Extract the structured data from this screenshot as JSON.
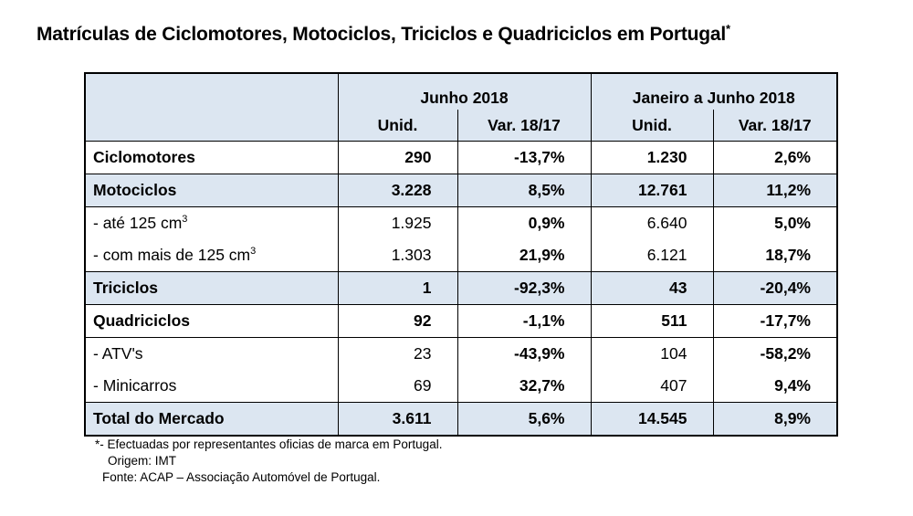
{
  "title": "Matrículas de Ciclomotores, Motociclos, Triciclos e Quadriciclos em Portugal",
  "title_mark": "*",
  "headers": {
    "group1": "Junho 2018",
    "group2": "Janeiro a Junho 2018",
    "unid1": "Unid.",
    "var1": "Var. 18/17",
    "unid2": "Unid.",
    "var2": "Var. 18/17"
  },
  "rows": [
    {
      "label": "Ciclomotores",
      "u1": "290",
      "v1": "-13,7%",
      "u2": "1.230",
      "v2": "2,6%"
    },
    {
      "label": "Motociclos",
      "u1": "3.228",
      "v1": "8,5%",
      "u2": "12.761",
      "v2": "11,2%"
    },
    {
      "label": "- até 125 cm",
      "sup": "3",
      "u1": "1.925",
      "v1": "0,9%",
      "u2": "6.640",
      "v2": "5,0%"
    },
    {
      "label": "- com mais de 125 cm",
      "sup": "3",
      "u1": "1.303",
      "v1": "21,9%",
      "u2": "6.121",
      "v2": "18,7%"
    },
    {
      "label": "Triciclos",
      "u1": "1",
      "v1": "-92,3%",
      "u2": "43",
      "v2": "-20,4%"
    },
    {
      "label": "Quadriciclos",
      "u1": "92",
      "v1": "-1,1%",
      "u2": "511",
      "v2": "-17,7%"
    },
    {
      "label": "- ATV's",
      "u1": "23",
      "v1": "-43,9%",
      "u2": "104",
      "v2": "-58,2%"
    },
    {
      "label": "- Minicarros",
      "u1": "69",
      "v1": "32,7%",
      "u2": "407",
      "v2": "9,4%"
    },
    {
      "label": "Total do Mercado",
      "u1": "3.611",
      "v1": "5,6%",
      "u2": "14.545",
      "v2": "8,9%"
    }
  ],
  "notes": {
    "line1": "*- Efectuadas por representantes oficias de marca em Portugal.",
    "line2": "Origem: IMT",
    "line3": "Fonte: ACAP – Associação Automóvel de Portugal."
  },
  "colors": {
    "header_bg": "#dce6f1",
    "text": "#000000"
  }
}
